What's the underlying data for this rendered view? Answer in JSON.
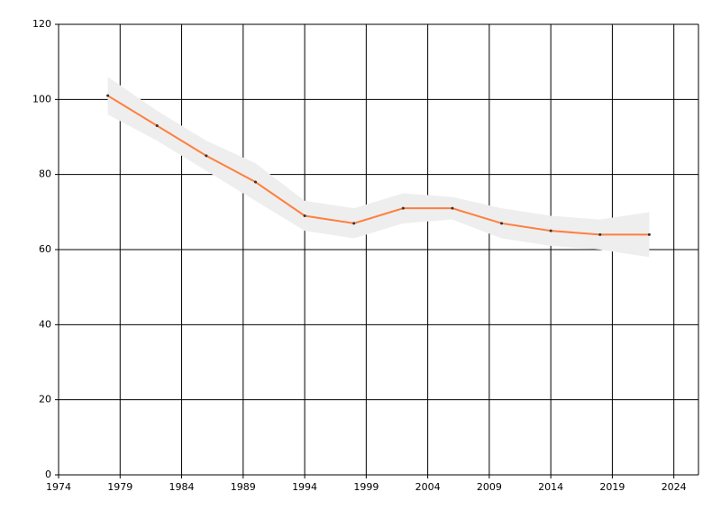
{
  "chart_data": {
    "type": "line",
    "x": [
      1978,
      1982,
      1986,
      1990,
      1994,
      1998,
      2002,
      2006,
      2010,
      2014,
      2018,
      2022
    ],
    "series": [
      {
        "color": "#ff7f3f",
        "band_color": "#eeeeee",
        "values": [
          101,
          93,
          85,
          78,
          69,
          67,
          71,
          71,
          67,
          65,
          64,
          64
        ],
        "lower": [
          96,
          89,
          81,
          73,
          65,
          63,
          67,
          68,
          63,
          61,
          60,
          58
        ],
        "upper": [
          106,
          97,
          89,
          83,
          73,
          71,
          75,
          74,
          71,
          69,
          68,
          70
        ]
      }
    ],
    "xlim": [
      1974,
      2026
    ],
    "xticks": [
      1974,
      1979,
      1984,
      1989,
      1994,
      1999,
      2004,
      2009,
      2014,
      2019,
      2024
    ],
    "ylim": [
      0,
      120
    ],
    "yticks": [
      0,
      20,
      40,
      60,
      80,
      100,
      120
    ],
    "grid": true
  }
}
